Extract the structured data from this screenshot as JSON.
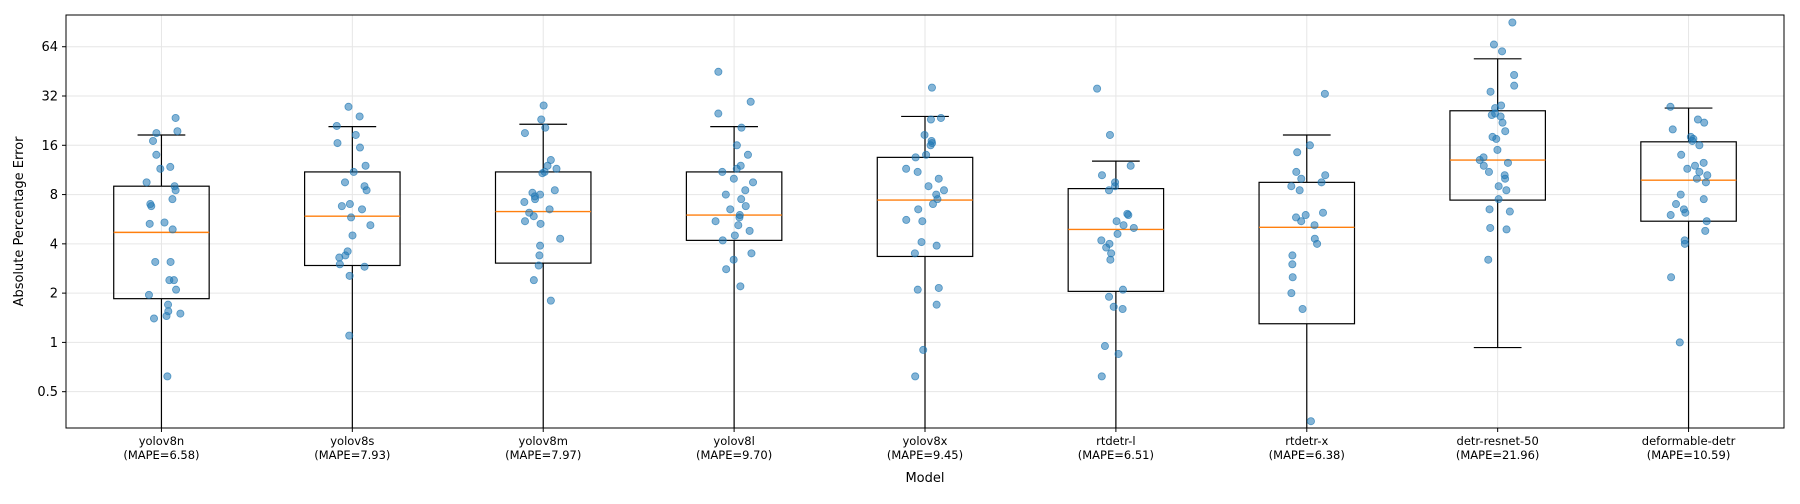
{
  "chart_data": {
    "type": "box",
    "title": "",
    "xlabel": "Model",
    "ylabel": "Absolute Percentage Error",
    "yscale": "log2",
    "ylim": [
      0.3,
      100
    ],
    "yticks": [
      0.5,
      1,
      2,
      4,
      8,
      16,
      32,
      64
    ],
    "ytick_labels": [
      "0.5",
      "1",
      "2",
      "4",
      "8",
      "16",
      "32",
      "64"
    ],
    "grid": true,
    "colors": {
      "box": "#000000",
      "median": "#ff7f0e",
      "points": "#1f77b4",
      "grid": "#e6e6e6"
    },
    "categories": [
      {
        "name": "yolov8n",
        "mape_label": "(MAPE=6.58)",
        "box": {
          "whisker_low": 0.3,
          "q1": 1.85,
          "median": 4.7,
          "q3": 9.0,
          "whisker_high": 18.5
        },
        "points": [
          0.62,
          1.4,
          1.45,
          1.5,
          1.55,
          1.7,
          1.95,
          2.1,
          2.4,
          2.4,
          3.1,
          3.1,
          4.9,
          5.3,
          5.4,
          6.8,
          7.0,
          7.5,
          8.5,
          9.0,
          9.5,
          11.5,
          11.8,
          14.0,
          17.0,
          19.0,
          19.5,
          23.5
        ]
      },
      {
        "name": "yolov8s",
        "mape_label": "(MAPE=7.93)",
        "box": {
          "whisker_low": 0.3,
          "q1": 2.95,
          "median": 5.9,
          "q3": 11.0,
          "whisker_high": 20.8
        },
        "points": [
          1.1,
          2.55,
          2.9,
          3.0,
          3.3,
          3.4,
          3.6,
          4.5,
          5.2,
          5.8,
          6.5,
          6.8,
          7.0,
          8.5,
          9.0,
          9.5,
          11.0,
          12.0,
          15.5,
          16.5,
          18.5,
          21.0,
          24.0,
          27.5
        ]
      },
      {
        "name": "yolov8m",
        "mape_label": "(MAPE=7.97)",
        "box": {
          "whisker_low": 0.3,
          "q1": 3.05,
          "median": 6.3,
          "q3": 11.0,
          "whisker_high": 21.5
        },
        "points": [
          1.8,
          2.4,
          2.95,
          3.4,
          3.9,
          4.3,
          5.3,
          5.5,
          5.9,
          6.2,
          6.5,
          7.2,
          7.5,
          7.8,
          8.0,
          8.2,
          8.5,
          10.8,
          11.0,
          11.5,
          12.0,
          13.0,
          19.0,
          20.5,
          23.0,
          28.0
        ]
      },
      {
        "name": "yolov8l",
        "mape_label": "(MAPE=9.70)",
        "box": {
          "whisker_low": 0.3,
          "q1": 4.2,
          "median": 6.0,
          "q3": 11.0,
          "whisker_high": 20.8
        },
        "points": [
          2.2,
          2.8,
          3.2,
          3.5,
          4.2,
          4.5,
          4.8,
          5.2,
          5.5,
          5.8,
          6.0,
          6.5,
          6.8,
          7.5,
          8.0,
          8.5,
          9.5,
          10.0,
          11.0,
          11.5,
          12.0,
          14.0,
          16.0,
          20.5,
          25.0,
          29.5,
          45.0
        ]
      },
      {
        "name": "yolov8x",
        "mape_label": "(MAPE=9.45)",
        "box": {
          "whisker_low": 0.3,
          "q1": 3.35,
          "median": 7.4,
          "q3": 13.5,
          "whisker_high": 24.0
        },
        "points": [
          0.62,
          0.9,
          1.7,
          2.1,
          2.15,
          3.5,
          3.9,
          4.1,
          5.5,
          5.6,
          6.5,
          7.0,
          7.5,
          8.0,
          8.5,
          9.0,
          10.0,
          11.0,
          11.5,
          13.5,
          14.0,
          16.0,
          16.5,
          17.0,
          18.5,
          23.0,
          23.5,
          36.0
        ]
      },
      {
        "name": "rtdetr-l",
        "mape_label": "(MAPE=6.51)",
        "box": {
          "whisker_low": 0.3,
          "q1": 2.05,
          "median": 4.9,
          "q3": 8.7,
          "whisker_high": 12.8
        },
        "points": [
          0.62,
          0.85,
          0.95,
          1.6,
          1.65,
          1.9,
          2.1,
          3.2,
          3.5,
          3.8,
          4.0,
          4.2,
          4.6,
          5.0,
          5.2,
          5.5,
          6.0,
          6.1,
          8.5,
          9.0,
          9.5,
          10.5,
          12.0,
          18.5,
          35.5
        ]
      },
      {
        "name": "rtdetr-x",
        "mape_label": "(MAPE=6.38)",
        "box": {
          "whisker_low": 0.3,
          "q1": 1.3,
          "median": 5.05,
          "q3": 9.5,
          "whisker_high": 18.5
        },
        "points": [
          0.33,
          1.6,
          2.0,
          2.5,
          3.0,
          3.4,
          4.0,
          4.3,
          5.2,
          5.5,
          5.8,
          6.0,
          6.2,
          8.5,
          9.0,
          9.5,
          10.0,
          10.5,
          11.0,
          14.5,
          16.0,
          33.0
        ]
      },
      {
        "name": "detr-resnet-50",
        "mape_label": "(MAPE=21.96)",
        "box": {
          "whisker_low": 0.93,
          "q1": 7.4,
          "median": 13.0,
          "q3": 26.0,
          "whisker_high": 54.0
        },
        "points": [
          3.2,
          4.9,
          5.0,
          6.3,
          6.5,
          7.5,
          8.5,
          9.0,
          10.0,
          10.5,
          11.0,
          12.0,
          12.5,
          13.0,
          13.5,
          15.0,
          17.5,
          18.0,
          19.5,
          22.0,
          24.0,
          24.5,
          25.0,
          27.0,
          28.0,
          34.0,
          37.0,
          43.0,
          60.0,
          66.0,
          90.0
        ]
      },
      {
        "name": "deformable-detr",
        "mape_label": "(MAPE=10.59)",
        "box": {
          "whisker_low": 0.3,
          "q1": 5.5,
          "median": 9.8,
          "q3": 16.8,
          "whisker_high": 27.0
        },
        "points": [
          1.0,
          2.5,
          4.0,
          4.2,
          4.8,
          5.5,
          6.0,
          6.2,
          6.5,
          7.0,
          7.5,
          8.0,
          9.5,
          10.0,
          10.5,
          11.0,
          11.5,
          12.0,
          12.5,
          14.0,
          16.0,
          17.0,
          17.5,
          18.0,
          20.0,
          22.0,
          23.0,
          27.5
        ]
      }
    ]
  }
}
